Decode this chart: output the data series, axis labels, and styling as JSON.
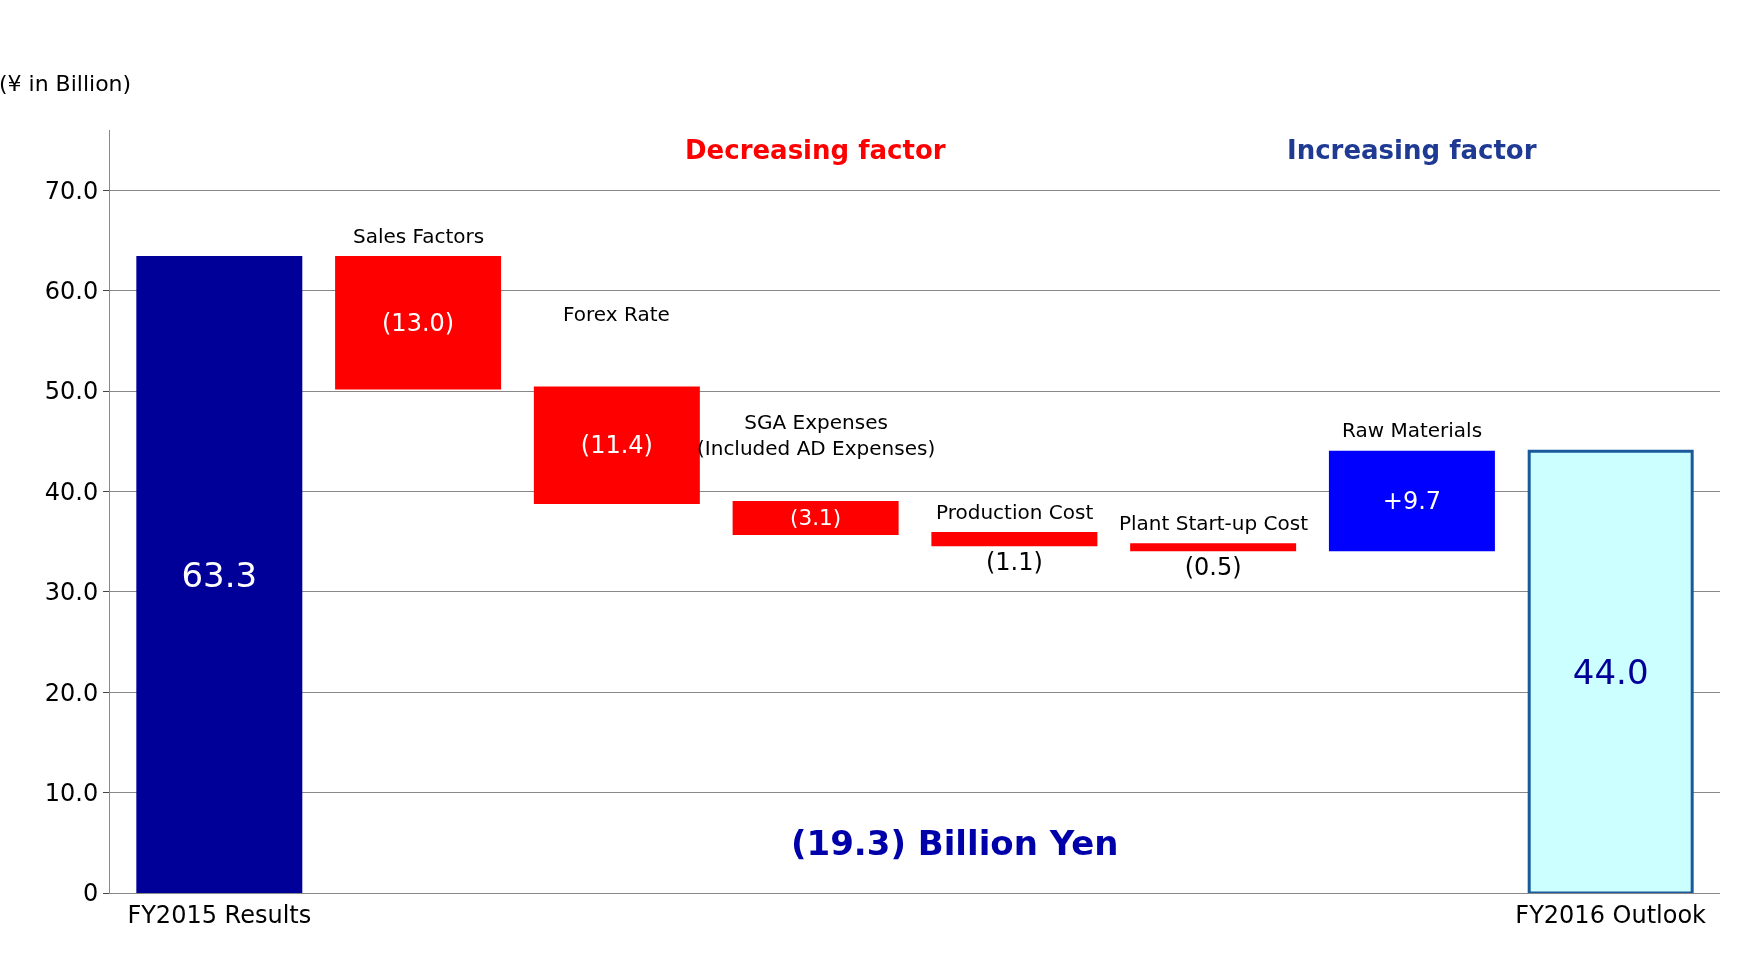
{
  "chart_data": {
    "type": "bar",
    "ylabel": "(¥ in Billion)",
    "categories": [
      "FY2015 Results",
      null,
      null,
      null,
      null,
      null,
      null,
      "FY2016 Outlook"
    ],
    "values": [
      63.3,
      -13.0,
      -11.4,
      -3.1,
      -1.1,
      -0.5,
      9.7,
      44.0
    ],
    "base": [
      0,
      63.3,
      50.3,
      38.9,
      35.8,
      34.7,
      34.2,
      0
    ],
    "colors": [
      "#000099",
      "#ff0000",
      "#ff0000",
      "#ff0000",
      "#ff0000",
      "#ff0000",
      "#0000ff",
      "#ccffff"
    ],
    "value_labels": [
      "63.3",
      "(13.0)",
      "(11.4)",
      "(3.1)",
      "(1.1)",
      "(0.5)",
      "+9.7",
      "44.0"
    ],
    "annotations": [
      "Sales Factors",
      "Forex Rate",
      "SGA Expenses\n(Included AD Expenses)",
      "Production Cost",
      "Plant Start-up Cost",
      "Raw Materials",
      "Decreasing factor",
      "Increasing factor",
      "(19.3) Billion Yen"
    ],
    "ylim": [
      0,
      76
    ],
    "yticks": [
      0,
      {
        "value": 10,
        "label": "10.0"
      },
      {
        "value": 20,
        "label": "20.0"
      },
      {
        "value": 30,
        "label": "30.0"
      },
      {
        "value": 40,
        "label": "40.0"
      },
      {
        "value": 50,
        "label": "50.0"
      },
      {
        "value": 60,
        "label": "60.0"
      },
      {
        "value": 70,
        "label": "70.0"
      }
    ],
    "grid": "y"
  }
}
